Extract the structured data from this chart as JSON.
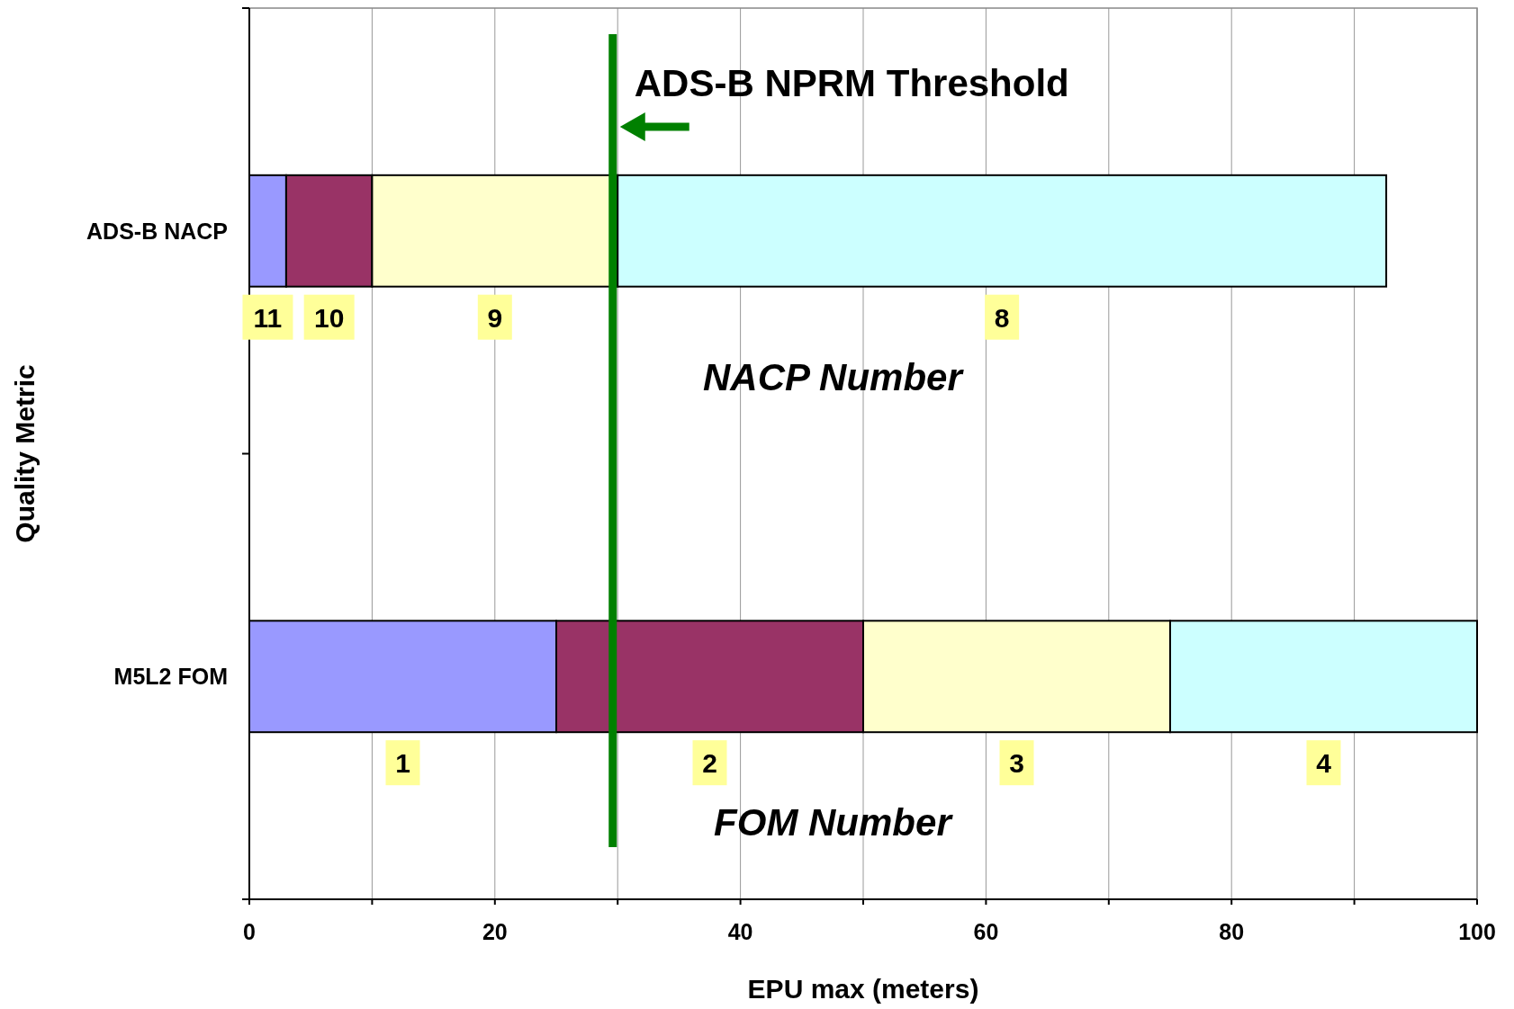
{
  "chart_data": {
    "type": "bar",
    "orientation": "horizontal",
    "stacked": true,
    "xlabel": "EPU max (meters)",
    "ylabel": "Quality Metric",
    "categories": [
      "ADS-B NACP",
      "M5L2 FOM"
    ],
    "series": [
      {
        "color": "#9999ff",
        "values": [
          3,
          25
        ]
      },
      {
        "color": "#993366",
        "values": [
          7,
          25
        ]
      },
      {
        "color": "#ffffcc",
        "values": [
          20,
          25
        ]
      },
      {
        "color": "#ccffff",
        "values": [
          62.6,
          25
        ]
      }
    ],
    "xlim": [
      0,
      100
    ],
    "xticks": [
      0,
      {
        "value": 10,
        "label": null
      },
      20,
      {
        "value": 30,
        "label": null
      },
      40,
      {
        "value": 50,
        "label": null
      },
      60,
      {
        "value": 70,
        "label": null
      },
      80,
      {
        "value": 90,
        "label": null
      },
      100
    ],
    "grid": "x",
    "ref_lines": [
      {
        "axis": "x",
        "value": 29.6,
        "label": "ADS-B NPRM Threshold",
        "color": "#008000"
      }
    ],
    "annotations": [
      "11",
      "10",
      "9",
      "8",
      "NACP Number",
      "1",
      "2",
      "3",
      "4",
      "FOM Number"
    ]
  }
}
